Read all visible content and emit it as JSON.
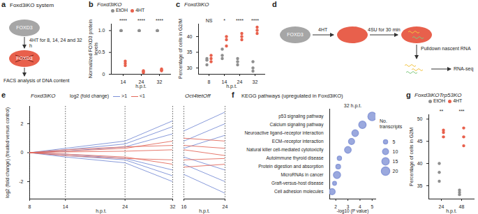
{
  "diagrams": [
    {
      "panel": "a",
      "title": "Foxd3iKO system",
      "cell1": "FOXD3",
      "arrow_label": "4HT for 8, 14, 24 and 32 h",
      "cell2": "FOXD3",
      "output": "FACS analysis of DNA content"
    },
    {
      "panel": "d",
      "cell1": "FOXD3",
      "arrow1": "4HT",
      "arrow2": "4SU for 30 min",
      "step3": "Pulldown nascent RNA",
      "step4": "RNA-seq"
    }
  ],
  "chart_data": [
    {
      "panel": "b",
      "type": "dot",
      "title": "Foxd3iKO",
      "x_label": "h.p.t.",
      "y_label": "Normalized FOXD3 protein levels",
      "categories": [
        14,
        24,
        32
      ],
      "ylim": [
        0,
        1.15
      ],
      "yticks": [
        0,
        0.5,
        {
          "value": 1,
          "label": "1.0"
        }
      ],
      "legend": "top",
      "series": [
        {
          "name": "EtOH",
          "color": "#8f8f8f",
          "values": [
            [
              1,
              1,
              1
            ],
            [
              1,
              1,
              1
            ],
            [
              1,
              1,
              1
            ]
          ]
        },
        {
          "name": "4HT",
          "color": "#e8604c",
          "values": [
            [
              0.3,
              0.25,
              0.2
            ],
            [
              0.06,
              0.04,
              0.08
            ],
            [
              0.12,
              0.08,
              0.1
            ]
          ]
        }
      ],
      "annotations": [
        {
          "x": 14,
          "label": "****"
        },
        {
          "x": 24,
          "label": "****"
        },
        {
          "x": 32,
          "label": "****"
        }
      ]
    },
    {
      "panel": "c",
      "type": "dot",
      "title": "Foxd3iKO",
      "x_label": "h.p.t.",
      "y_label": "Percentage of cells in G2/M",
      "categories": [
        8,
        14,
        24,
        32
      ],
      "ylim": [
        28,
        44
      ],
      "yticks": [
        30,
        35,
        40
      ],
      "series": [
        {
          "name": "EtOH",
          "color": "#8f8f8f",
          "values": [
            [
              33,
              32.5,
              31
            ],
            [
              34,
              33,
              36
            ],
            [
              33,
              32,
              31
            ],
            [
              32,
              30,
              29
            ]
          ]
        },
        {
          "name": "4HT",
          "color": "#e8604c",
          "values": [
            [
              32,
              33,
              34
            ],
            [
              39,
              40,
              37
            ],
            [
              40,
              41,
              39
            ],
            [
              42,
              43,
              41
            ]
          ]
        }
      ],
      "annotations": [
        {
          "x": 8,
          "label": "NS"
        },
        {
          "x": 14,
          "label": "*"
        },
        {
          "x": 24,
          "label": "****"
        },
        {
          "x": 32,
          "label": "****"
        }
      ]
    },
    {
      "panel": "e",
      "type": "line",
      "x_label": "h.p.t.",
      "y_label": "log2 (fold change) (treated versus control)",
      "ylim": [
        -3.2,
        3.2
      ],
      "yticks": [
        -2,
        0,
        2
      ],
      "grid": "x",
      "legend": "top",
      "legend_title": "log2 (fold change)",
      "subplots": [
        {
          "title": "Foxd3iKO",
          "xlim": [
            8,
            32
          ],
          "xticks": [
            8,
            14,
            24,
            32
          ],
          "x": [
            8,
            14,
            24,
            32
          ],
          "series": [
            {
              "name": ">1",
              "color": "#7b8fd6",
              "values": [
                [
                  0,
                  0.2,
                  0.6,
                  1.8
                ],
                [
                  0,
                  0.3,
                  0.8,
                  2.2
                ],
                [
                  0,
                  -0.2,
                  -0.5,
                  -1.6
                ],
                [
                  0,
                  -0.3,
                  -0.7,
                  -2.0
                ],
                [
                  0,
                  0.1,
                  0.4,
                  1.3
                ],
                [
                  0,
                  -0.1,
                  -0.4,
                  -1.2
                ]
              ]
            },
            {
              "name": "<1",
              "color": "#e36a5c",
              "values": [
                [
                  0,
                  0.1,
                  0.3,
                  0.8
                ],
                [
                  0,
                  -0.1,
                  -0.3,
                  -0.8
                ],
                [
                  0,
                  0.2,
                  0.4,
                  0.5
                ],
                [
                  0,
                  -0.2,
                  -0.4,
                  -0.5
                ],
                [
                  0,
                  0.05,
                  0.1,
                  0.2
                ]
              ]
            }
          ]
        },
        {
          "title": "Oct4tetOff",
          "xlim": [
            16,
            24
          ],
          "xticks": [
            16,
            24
          ],
          "x": [
            16,
            24
          ],
          "series": [
            {
              "name": ">1",
              "color": "#7b8fd6",
              "values": [
                [
                  1.5,
                  2.8
                ],
                [
                  -1.5,
                  -2.8
                ],
                [
                  0.8,
                  2.0
                ],
                [
                  -0.8,
                  -2.0
                ],
                [
                  0.3,
                  1.2
                ],
                [
                  -0.3,
                  -1.2
                ]
              ]
            },
            {
              "name": "<1",
              "color": "#e36a5c",
              "values": [
                [
                  1.0,
                  0.8
                ],
                [
                  -1.0,
                  -0.8
                ],
                [
                  0.5,
                  0.3
                ],
                [
                  -0.5,
                  -0.4
                ],
                [
                  0.2,
                  -0.2
                ]
              ]
            }
          ]
        }
      ]
    },
    {
      "panel": "f",
      "type": "scatter",
      "title": "KEGG pathways (upregulated in Foxd3iKO)",
      "annotation": "32 h.p.t.",
      "x_label": "-log10 (P value)",
      "xlim": [
        1.5,
        5.3
      ],
      "xticks": [
        2,
        3,
        4,
        5
      ],
      "color": "#8a9ad8",
      "categories": [
        "p53 signaling pathway",
        "Calcium signaling pathway",
        "Neuroactive ligand–receptor interaction",
        "ECM–receptor interaction",
        "Natural killer cell-mediated cytotoxicity",
        "Autoimmune thyroid disease",
        "Protein digestion and absorption",
        "MicroRNAs in cancer",
        "Graft-versus-host disease",
        "Cell adhesion molecules"
      ],
      "values": [
        5.0,
        4.2,
        3.6,
        3.3,
        3.0,
        2.3,
        2.2,
        2.1,
        1.9,
        1.7
      ],
      "sizes": [
        20,
        15,
        12,
        10,
        12,
        5,
        6,
        14,
        4,
        10
      ],
      "size_legend_title": "No. transcripts",
      "size_legend": [
        5,
        10,
        15,
        20
      ]
    },
    {
      "panel": "g",
      "type": "dot",
      "title": "Foxd3iKOTrp53KO",
      "x_label": "h.p.t.",
      "y_label": "Percentage of cells in G2M",
      "categories": [
        24,
        48
      ],
      "ylim": [
        32,
        51
      ],
      "yticks": [
        35,
        40,
        45,
        50
      ],
      "legend": "top",
      "series": [
        {
          "name": "EtOH",
          "color": "#8f8f8f",
          "values": [
            [
              40,
              38,
              36
            ],
            [
              34,
              33.5,
              33
            ]
          ]
        },
        {
          "name": "4HT",
          "color": "#e8604c",
          "values": [
            [
              46,
              47,
              47.5
            ],
            [
              44,
              46,
              48
            ]
          ]
        }
      ],
      "annotations": [
        {
          "x": 24,
          "label": "**"
        },
        {
          "x": 48,
          "label": "***"
        }
      ]
    }
  ]
}
